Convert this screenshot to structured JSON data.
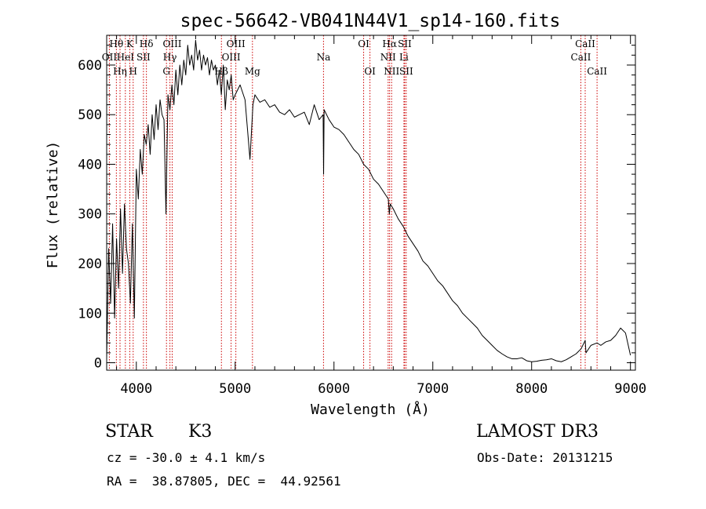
{
  "chart_data": {
    "type": "line",
    "title": "spec-56642-VB041N44V1_sp14-160.fits",
    "xlabel": "Wavelength (Å)",
    "ylabel": "Flux (relative)",
    "xlim": [
      3700,
      9050
    ],
    "ylim": [
      -15,
      660
    ],
    "x_ticks": [
      {
        "value": 4000,
        "label": "4000"
      },
      {
        "value": 5000,
        "label": "5000"
      },
      {
        "value": 6000,
        "label": "6000"
      },
      {
        "value": 7000,
        "label": "7000"
      },
      {
        "value": 8000,
        "label": "8000"
      },
      {
        "value": 9000,
        "label": "9000"
      }
    ],
    "y_ticks": [
      {
        "value": 0,
        "label": "0"
      },
      {
        "value": 100,
        "label": "100"
      },
      {
        "value": 200,
        "label": "200"
      },
      {
        "value": 300,
        "label": "300"
      },
      {
        "value": 400,
        "label": "400"
      },
      {
        "value": 500,
        "label": "500"
      },
      {
        "value": 600,
        "label": "600"
      }
    ],
    "series": [
      {
        "name": "flux",
        "color": "#000000",
        "x": [
          3700,
          3720,
          3740,
          3760,
          3780,
          3800,
          3820,
          3840,
          3860,
          3880,
          3900,
          3920,
          3940,
          3960,
          3980,
          4000,
          4020,
          4040,
          4060,
          4080,
          4100,
          4120,
          4140,
          4160,
          4180,
          4200,
          4220,
          4240,
          4260,
          4280,
          4300,
          4320,
          4340,
          4360,
          4380,
          4400,
          4420,
          4440,
          4460,
          4480,
          4500,
          4520,
          4540,
          4560,
          4580,
          4600,
          4620,
          4640,
          4660,
          4680,
          4700,
          4720,
          4740,
          4760,
          4780,
          4800,
          4820,
          4840,
          4860,
          4880,
          4900,
          4920,
          4940,
          4960,
          4980,
          5000,
          5050,
          5100,
          5150,
          5180,
          5200,
          5250,
          5300,
          5350,
          5400,
          5450,
          5500,
          5550,
          5600,
          5650,
          5700,
          5750,
          5800,
          5850,
          5890,
          5895,
          5900,
          5950,
          6000,
          6050,
          6100,
          6150,
          6200,
          6250,
          6300,
          6350,
          6400,
          6450,
          6500,
          6550,
          6560,
          6570,
          6600,
          6650,
          6700,
          6750,
          6800,
          6850,
          6900,
          6950,
          7000,
          7050,
          7100,
          7150,
          7200,
          7250,
          7300,
          7350,
          7400,
          7450,
          7500,
          7550,
          7600,
          7650,
          7700,
          7750,
          7800,
          7850,
          7900,
          7950,
          8000,
          8050,
          8100,
          8150,
          8200,
          8250,
          8300,
          8350,
          8400,
          8450,
          8500,
          8542,
          8550,
          8600,
          8662,
          8700,
          8750,
          8800,
          8850,
          8900,
          8950,
          9000
        ],
        "y": [
          10,
          230,
          120,
          280,
          90,
          250,
          150,
          310,
          180,
          320,
          230,
          200,
          120,
          280,
          90,
          390,
          330,
          430,
          380,
          460,
          440,
          480,
          420,
          500,
          450,
          520,
          470,
          530,
          500,
          490,
          300,
          540,
          510,
          560,
          520,
          590,
          540,
          600,
          560,
          610,
          580,
          640,
          600,
          620,
          590,
          650,
          610,
          630,
          590,
          620,
          600,
          615,
          580,
          610,
          590,
          600,
          560,
          590,
          540,
          600,
          510,
          570,
          550,
          580,
          530,
          540,
          560,
          530,
          410,
          520,
          540,
          525,
          530,
          515,
          520,
          505,
          500,
          510,
          495,
          500,
          505,
          480,
          520,
          490,
          500,
          380,
          510,
          490,
          475,
          470,
          460,
          445,
          430,
          420,
          400,
          390,
          370,
          360,
          345,
          330,
          300,
          320,
          310,
          290,
          275,
          255,
          240,
          225,
          205,
          195,
          180,
          165,
          155,
          140,
          125,
          115,
          100,
          90,
          80,
          70,
          55,
          45,
          35,
          25,
          18,
          12,
          8,
          8,
          10,
          4,
          2,
          3,
          5,
          6,
          8,
          4,
          2,
          6,
          12,
          18,
          28,
          45,
          20,
          35,
          40,
          35,
          42,
          45,
          55,
          70,
          60,
          15
        ]
      }
    ],
    "lines_dark": [
      {
        "label": "OII",
        "x": 3727,
        "row": 2
      },
      {
        "label": "Hθ",
        "x": 3798,
        "row": 1
      },
      {
        "label": "Hη",
        "x": 3835,
        "row": 3
      },
      {
        "label": "HeI",
        "x": 3889,
        "row": 2
      },
      {
        "label": "K",
        "x": 3934,
        "row": 1
      },
      {
        "label": "H",
        "x": 3968,
        "row": 3
      },
      {
        "label": "SII",
        "x": 4072,
        "row": 2
      },
      {
        "label": "Hδ",
        "x": 4102,
        "row": 1
      },
      {
        "label": "OIII",
        "x": 4363,
        "row": 1
      },
      {
        "label": "Hγ",
        "x": 4340,
        "row": 2
      },
      {
        "label": "G",
        "x": 4305,
        "row": 3
      },
      {
        "label": "Hβ",
        "x": 4861,
        "row": 3
      },
      {
        "label": "OIII",
        "x": 4959,
        "row": 2
      },
      {
        "label": "OIII",
        "x": 5007,
        "row": 1
      },
      {
        "label": "Mg",
        "x": 5175,
        "row": 3
      },
      {
        "label": "Na",
        "x": 5894,
        "row": 2
      },
      {
        "label": "OI",
        "x": 6300,
        "row": 1
      },
      {
        "label": "OI",
        "x": 6364,
        "row": 3
      },
      {
        "label": "NII",
        "x": 6548,
        "row": 2
      },
      {
        "label": "Hα",
        "x": 6563,
        "row": 1
      },
      {
        "label": "NII",
        "x": 6583,
        "row": 3
      },
      {
        "label": "Li",
        "x": 6708,
        "row": 2
      },
      {
        "label": "SII",
        "x": 6716,
        "row": 1
      },
      {
        "label": "SII",
        "x": 6731,
        "row": 3
      },
      {
        "label": "CaII",
        "x": 8498,
        "row": 2
      },
      {
        "label": "CaII",
        "x": 8542,
        "row": 1
      },
      {
        "label": "CaII",
        "x": 8662,
        "row": 3
      }
    ],
    "line_color": "#cc0000"
  },
  "info": {
    "object_class": "STAR",
    "subclass": "K3",
    "survey": "LAMOST DR3",
    "redshift": "cz = -30.0 ± 4.1 km/s",
    "obs_date": "Obs-Date: 20131215",
    "coords": "RA =  38.87805, DEC =  44.92561"
  }
}
